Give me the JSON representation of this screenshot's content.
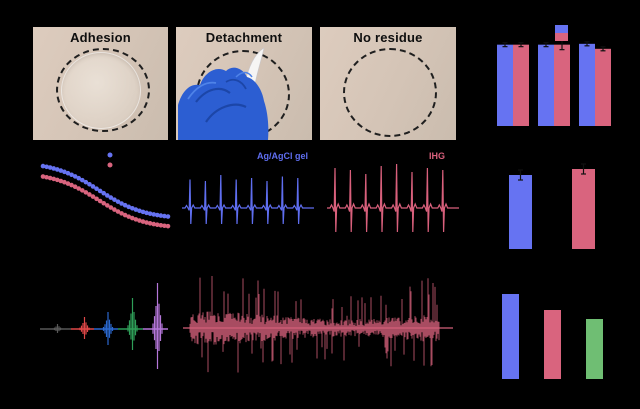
{
  "photos": [
    {
      "label": "Adhesion"
    },
    {
      "label": "Detachment"
    },
    {
      "label": "No residue"
    }
  ],
  "trace_labels": {
    "ecg_blue": "Ag/AgCl gel",
    "ecg_pink": "IHG"
  },
  "colors": {
    "background": "#000000",
    "bar_blue": "#6673f2",
    "bar_rose": "#d9647e",
    "bar_green": "#6fbe73",
    "ecg_blue": "#5f6ef0",
    "ecg_pink": "#d9607c",
    "photo_paper": "#d5c4b6",
    "glove_blue": "#2c5ed2"
  },
  "chart_data": [
    {
      "id": "top-right-grouped-bars",
      "type": "bar",
      "categories": [
        "group1",
        "group2",
        "group3"
      ],
      "series": [
        {
          "name": "blue",
          "color": "#6673f2",
          "values": [
            98,
            98,
            99
          ],
          "errors": [
            2,
            2,
            2
          ]
        },
        {
          "name": "rose",
          "color": "#d9647e",
          "values": [
            98,
            98,
            93
          ],
          "errors": [
            2,
            5,
            2
          ]
        }
      ],
      "ylim": [
        0,
        105
      ],
      "legend_position": "top-center",
      "legend_style": "stacked-swatches"
    },
    {
      "id": "impedance-scatter",
      "type": "scatter",
      "marker": "dot",
      "points_per_series": 36,
      "series": [
        {
          "name": "blue",
          "color": "#6673f2",
          "y_start": 0.9,
          "y_end": 0.3,
          "midpoint": 0.45,
          "steepness": 5.5
        },
        {
          "name": "rose",
          "color": "#d9647e",
          "y_start": 0.79,
          "y_end": 0.2,
          "midpoint": 0.45,
          "steepness": 5.5
        }
      ],
      "legend_position": "top-right"
    },
    {
      "id": "ecg-blue",
      "type": "line",
      "label": "Ag/AgCl gel",
      "color": "#5f6ef0",
      "beats": 8,
      "r_amp": 30,
      "s_amp": 16,
      "p_amp": 2.5,
      "t_amp": 3,
      "r_variation": [
        0.95,
        0.9,
        1.1,
        0.95,
        1.0,
        0.9,
        1.05,
        1.0
      ]
    },
    {
      "id": "ecg-pink",
      "type": "line",
      "label": "IHG",
      "color": "#d9607c",
      "beats": 8,
      "r_amp": 40,
      "s_amp": 24,
      "p_amp": 3,
      "t_amp": 4,
      "r_variation": [
        1.0,
        0.95,
        0.85,
        1.05,
        1.1,
        0.9,
        1.0,
        0.95
      ]
    },
    {
      "id": "emg-levels",
      "type": "line",
      "segments": [
        {
          "color": "#595959",
          "amp_up": 5,
          "amp_down": 4
        },
        {
          "color": "#e04848",
          "amp_up": 12,
          "amp_down": 10
        },
        {
          "color": "#2b69cf",
          "amp_up": 17,
          "amp_down": 16
        },
        {
          "color": "#2e9e58",
          "amp_up": 31,
          "amp_down": 21
        },
        {
          "color": "#b577d9",
          "amp_up": 46,
          "amp_down": 40
        }
      ]
    },
    {
      "id": "emg-dense",
      "type": "line",
      "color": "#d4607a",
      "amp_base": 11,
      "amp_max": 46
    },
    {
      "id": "middle-right-bars",
      "type": "bar",
      "values": [
        74,
        80
      ],
      "errors": [
        5,
        5
      ],
      "colors": [
        "#6673f2",
        "#d9647e"
      ]
    },
    {
      "id": "bottom-right-bars",
      "type": "bar",
      "values": [
        85,
        69,
        60
      ],
      "errors": [
        0,
        0,
        0
      ],
      "colors": [
        "#6673f2",
        "#d9647e",
        "#6fbe73"
      ]
    }
  ]
}
